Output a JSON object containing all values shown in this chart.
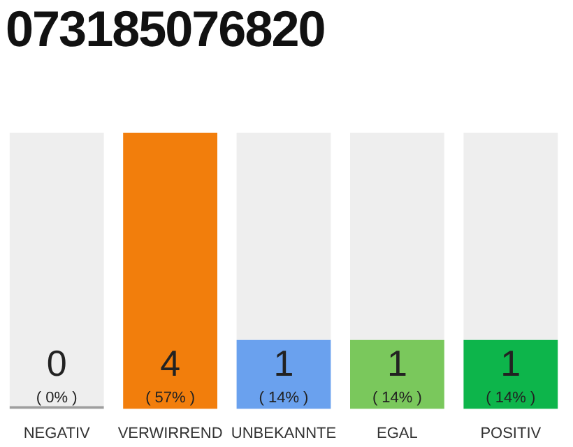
{
  "chart_data": {
    "type": "bar",
    "title": "073185076820",
    "categories": [
      "NEGATIV",
      "VERWIRREND",
      "UNBEKANNTE",
      "EGAL",
      "POSITIV"
    ],
    "stacked": true,
    "series": [
      {
        "colors": [
          "#9e9e9e",
          "#f27e0c",
          "#6aa1ee",
          "#7ac85c",
          "#0db54b"
        ],
        "values": [
          0,
          4,
          1,
          1,
          1
        ],
        "value_labels": [
          "0\n( 0% )",
          "4\n( 57% )",
          "1\n( 14% )",
          "1\n( 14% )",
          "1\n( 14% )"
        ]
      },
      {
        "color": "#eeeeee",
        "values": [
          4,
          0,
          3,
          3,
          3
        ]
      }
    ],
    "ylim": [
      0,
      4
    ],
    "tick_labels": "x"
  }
}
